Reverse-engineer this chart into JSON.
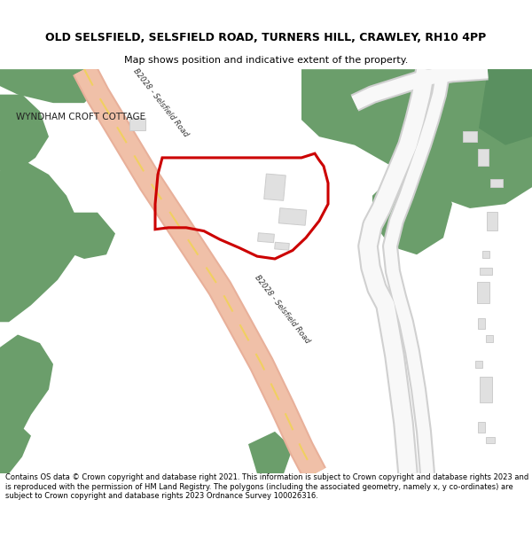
{
  "title_line1": "OLD SELSFIELD, SELSFIELD ROAD, TURNERS HILL, CRAWLEY, RH10 4PP",
  "title_line2": "Map shows position and indicative extent of the property.",
  "footer_text": "Contains OS data © Crown copyright and database right 2021. This information is subject to Crown copyright and database rights 2023 and is reproduced with the permission of HM Land Registry. The polygons (including the associated geometry, namely x, y co-ordinates) are subject to Crown copyright and database rights 2023 Ordnance Survey 100026316.",
  "bg_color": "#ffffff",
  "green_color": "#6b9e6b",
  "road_color": "#f0c0a8",
  "road_outline_color": "#e8b09a",
  "road_center_color": "#f5e8a0",
  "white_road_color": "#f5f5f5",
  "white_road_edge": "#d8d8d8",
  "building_color": "#e8e8e8",
  "building_edge": "#cccccc",
  "plot_color": "#cc0000",
  "label_road": "B2028 - Selsfield Road",
  "label_cottage": "WYNDHAM CROFT COTTAGE"
}
